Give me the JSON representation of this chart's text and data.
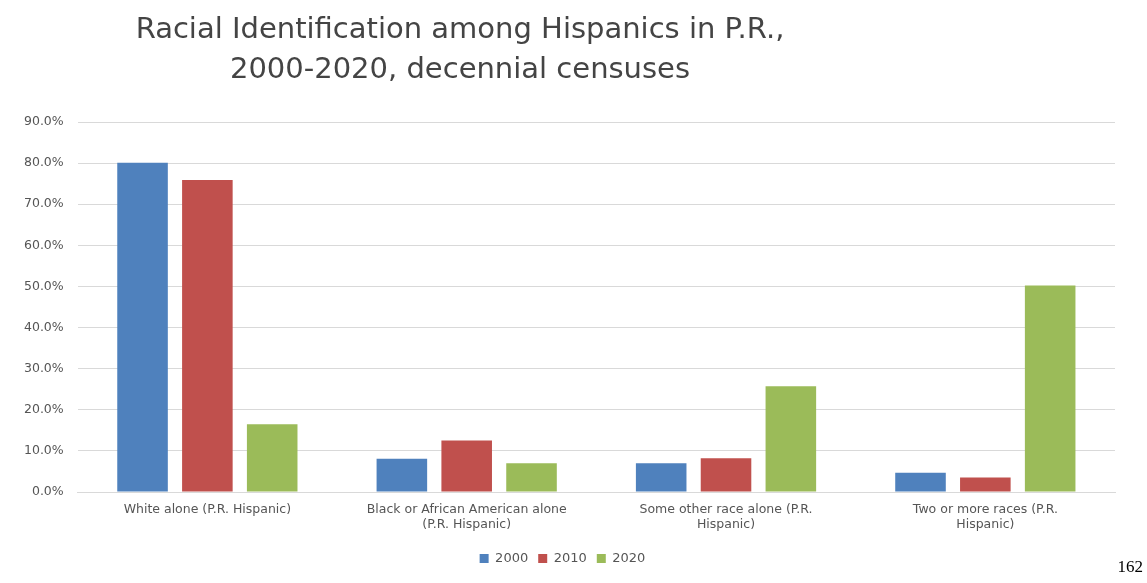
{
  "chart_data": {
    "type": "bar",
    "title": "Racial Identification among Hispanics in P.R., 2000-2020, decennial censuses",
    "categories": [
      "White alone (P.R. Hispanic)",
      "Black or African American alone (P.R. Hispanic)",
      "Some other race alone (P.R. Hispanic)",
      "Two or more races (P.R. Hispanic)"
    ],
    "series": [
      {
        "name": "2000",
        "color": "#4f81bd",
        "values": [
          80.1,
          8.1,
          7.0,
          4.7
        ]
      },
      {
        "name": "2010",
        "color": "#c0504d",
        "values": [
          75.9,
          12.5,
          8.2,
          3.5
        ]
      },
      {
        "name": "2020",
        "color": "#9bbb59",
        "values": [
          16.5,
          7.0,
          25.7,
          50.2
        ]
      }
    ],
    "ylim": [
      0,
      90
    ],
    "yticks": [
      {
        "value": 0,
        "label": "0.0%"
      },
      {
        "value": 10,
        "label": "10.0%"
      },
      {
        "value": 20,
        "label": "20.0%"
      },
      {
        "value": 30,
        "label": "30.0%"
      },
      {
        "value": 40,
        "label": "40.0%"
      },
      {
        "value": 50,
        "label": "50.0%"
      },
      {
        "value": 60,
        "label": "60.0%"
      },
      {
        "value": 70,
        "label": "70.0%"
      },
      {
        "value": 80,
        "label": "80.0%"
      },
      {
        "value": 90,
        "label": "90.0%"
      }
    ],
    "grid": "y",
    "legend": "bottom",
    "annotations": [
      "162"
    ]
  }
}
